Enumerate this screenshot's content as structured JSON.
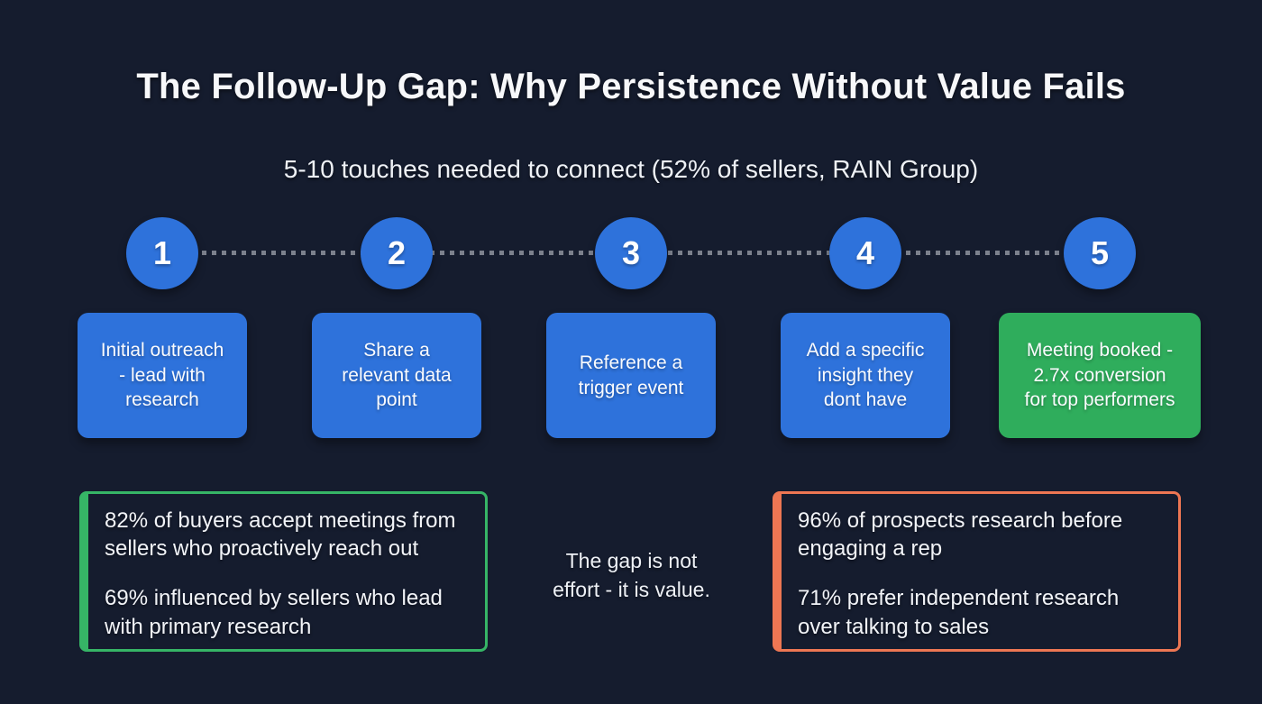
{
  "title": "The Follow-Up Gap: Why Persistence Without Value Fails",
  "subtitle": "5-10 touches needed to connect (52% of sellers, RAIN Group)",
  "colors": {
    "background": "#151c2e",
    "blue": "#2e72db",
    "green": "#2fad5c",
    "green_border": "#36b566",
    "orange_border": "#ed7653",
    "dotted_line": "#7c818d",
    "text": "#f3f5f8"
  },
  "steps": [
    {
      "number": "1",
      "label": "Initial outreach - lead with research"
    },
    {
      "number": "2",
      "label": "Share a relevant data point"
    },
    {
      "number": "3",
      "label": "Reference a trigger event"
    },
    {
      "number": "4",
      "label": "Add a specific insight they dont have"
    },
    {
      "number": "5",
      "label": "Meeting booked - 2.7x conversion for top performers"
    }
  ],
  "left_stat_box": {
    "lines": [
      "82% of buyers accept meetings from sellers who proactively reach out",
      "69% influenced by sellers who lead with primary research"
    ]
  },
  "center_note": "The gap is not effort - it is value.",
  "right_stat_box": {
    "lines": [
      "96% of prospects research before engaging a rep",
      "71% prefer independent research over talking to sales"
    ]
  }
}
